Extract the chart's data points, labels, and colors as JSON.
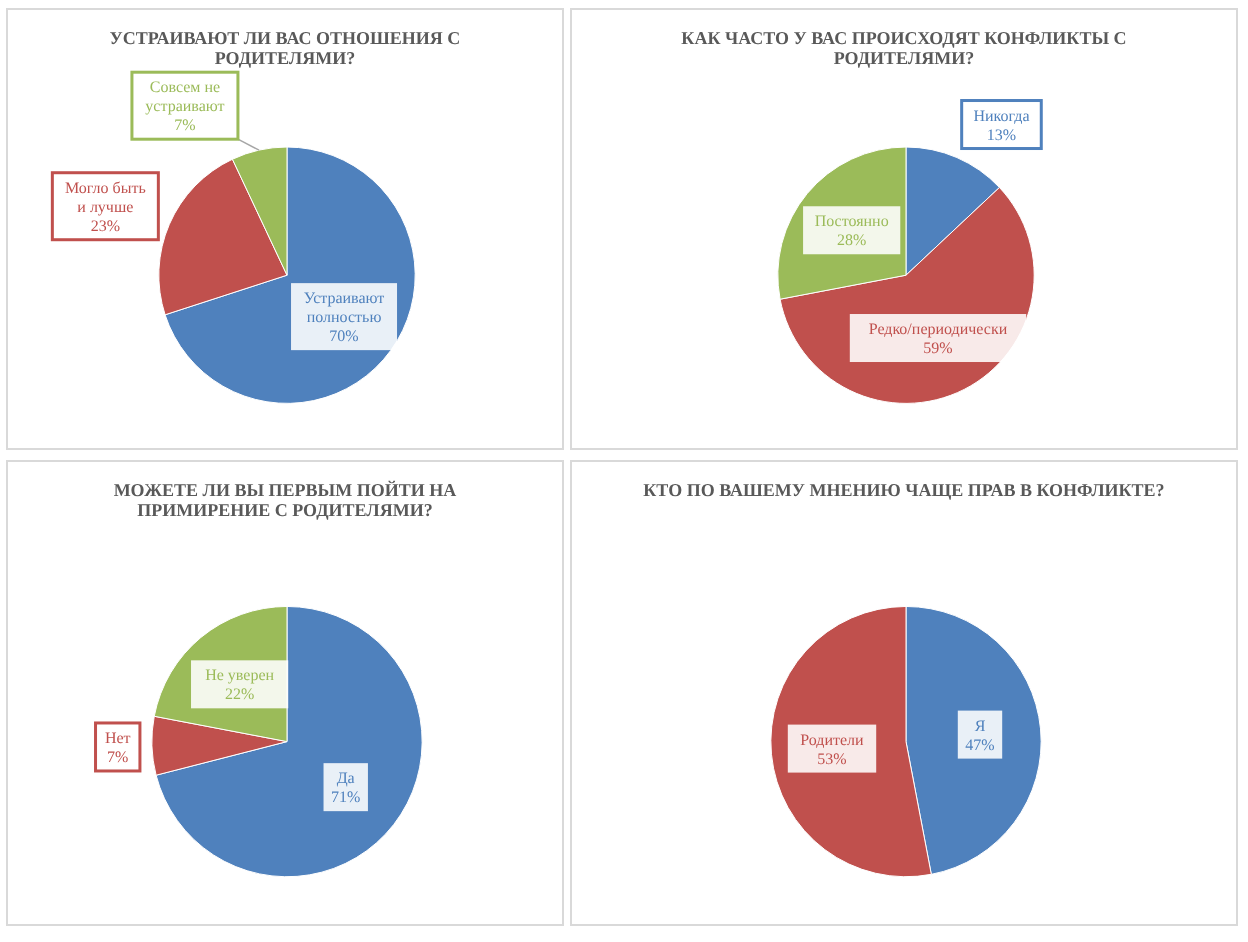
{
  "chart_data": [
    {
      "type": "pie",
      "title": "УСТРАИВАЮТ ЛИ ВАС ОТНОШЕНИЯ С РОДИТЕЛЯМИ?",
      "categories": [
        "Устраивают полностью",
        "Могло быть и лучше",
        "Совсем не устраивают"
      ],
      "values": [
        70,
        23,
        7
      ],
      "colors": [
        "#4f81bd",
        "#c0504d",
        "#9bbb59"
      ],
      "value_labels": [
        "70%",
        "23%",
        "7%"
      ]
    },
    {
      "type": "pie",
      "title": "КАК ЧАСТО У ВАС ПРОИСХОДЯТ КОНФЛИКТЫ С РОДИТЕЛЯМИ?",
      "categories": [
        "Никогда",
        "Редко/периодически",
        "Постоянно"
      ],
      "values": [
        13,
        59,
        28
      ],
      "colors": [
        "#4f81bd",
        "#c0504d",
        "#9bbb59"
      ],
      "value_labels": [
        "13%",
        "59%",
        "28%"
      ]
    },
    {
      "type": "pie",
      "title": "МОЖЕТЕ ЛИ ВЫ ПЕРВЫМ ПОЙТИ НА ПРИМИРЕНИЕ С РОДИТЕЛЯМИ?",
      "categories": [
        "Да",
        "Нет",
        "Не уверен"
      ],
      "values": [
        71,
        7,
        22
      ],
      "colors": [
        "#4f81bd",
        "#c0504d",
        "#9bbb59"
      ],
      "value_labels": [
        "71%",
        "7%",
        "22%"
      ]
    },
    {
      "type": "pie",
      "title": "КТО ПО ВАШЕМУ МНЕНИЮ ЧАЩЕ ПРАВ В КОНФЛИКТЕ?",
      "categories": [
        "Я",
        "Родители"
      ],
      "values": [
        47,
        53
      ],
      "colors": [
        "#4f81bd",
        "#c0504d"
      ],
      "value_labels": [
        "47%",
        "53%"
      ]
    }
  ]
}
